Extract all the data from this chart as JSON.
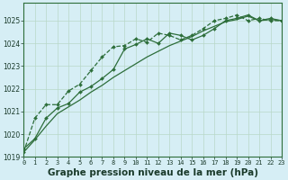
{
  "bg_color": "#d6eef5",
  "grid_color": "#b8d8c8",
  "line_color": "#2d6e3a",
  "xlabel": "Graphe pression niveau de la mer (hPa)",
  "xlabel_fontsize": 7.5,
  "xlim": [
    0,
    23
  ],
  "ylim": [
    1019,
    1025.8
  ],
  "yticks": [
    1019,
    1020,
    1021,
    1022,
    1023,
    1024,
    1025
  ],
  "xticks": [
    0,
    1,
    2,
    3,
    4,
    5,
    6,
    7,
    8,
    9,
    10,
    11,
    12,
    13,
    14,
    15,
    16,
    17,
    18,
    19,
    20,
    21,
    22,
    23
  ],
  "line1_dotted": [
    1019.2,
    1020.7,
    1021.3,
    1021.3,
    1021.9,
    1022.2,
    1022.8,
    1023.4,
    1023.85,
    1023.9,
    1024.2,
    1024.05,
    1024.45,
    1024.35,
    1024.15,
    1024.35,
    1024.65,
    1025.0,
    1025.1,
    1025.25,
    1025.0,
    1025.1,
    1025.0,
    1025.0
  ],
  "line2_solid_marker": [
    1019.35,
    1019.8,
    1020.7,
    1021.15,
    1021.35,
    1021.85,
    1022.1,
    1022.45,
    1022.85,
    1023.75,
    1023.95,
    1024.2,
    1024.0,
    1024.45,
    1024.35,
    1024.15,
    1024.35,
    1024.65,
    1025.0,
    1025.1,
    1025.25,
    1025.0,
    1025.1,
    1025.0
  ],
  "line3_solid": [
    1019.2,
    1019.75,
    1020.35,
    1020.9,
    1021.2,
    1021.5,
    1021.85,
    1022.15,
    1022.5,
    1022.8,
    1023.1,
    1023.4,
    1023.65,
    1023.9,
    1024.1,
    1024.3,
    1024.55,
    1024.75,
    1024.95,
    1025.05,
    1025.2,
    1025.0,
    1025.05,
    1025.0
  ]
}
